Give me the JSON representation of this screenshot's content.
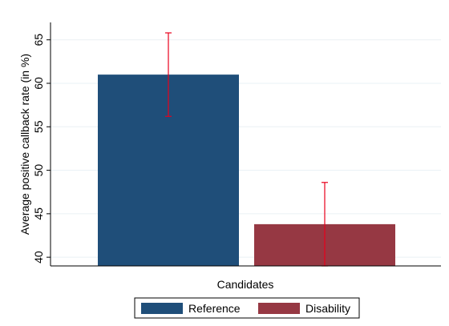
{
  "chart_data": {
    "type": "bar",
    "xlabel": "Candidates",
    "ylabel": "Average positive callback rate (in %)",
    "ylim": [
      39,
      67
    ],
    "yticks": [
      40,
      45,
      50,
      55,
      60,
      65
    ],
    "grid": true,
    "legend_position": "bottom",
    "series": [
      {
        "name": "Reference",
        "value": 61.0,
        "ci_low": 56.2,
        "ci_high": 65.8,
        "color": "#1f4e79"
      },
      {
        "name": "Disability",
        "value": 43.8,
        "ci_low": 39.0,
        "ci_high": 48.6,
        "color": "#963843"
      }
    ],
    "error_bar_color": "#e8001c"
  }
}
